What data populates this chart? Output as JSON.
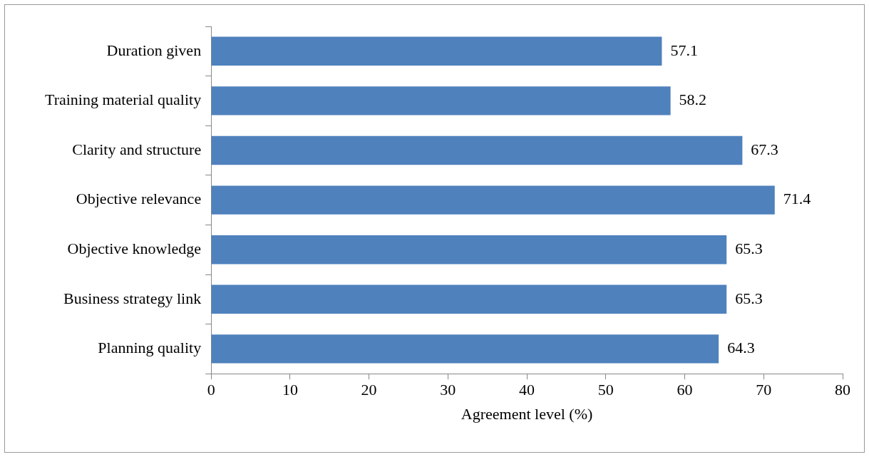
{
  "chart_data": {
    "type": "bar",
    "orientation": "horizontal",
    "xlabel": "Agreement level (%)",
    "categories": [
      "Duration given",
      "Training material quality",
      "Clarity and structure",
      "Objective relevance",
      "Objective knowledge",
      "Business strategy link",
      "Planning quality"
    ],
    "values": [
      57.1,
      58.2,
      67.3,
      71.4,
      65.3,
      65.3,
      64.3
    ],
    "color": "#4f81bd",
    "xlim": [
      0,
      80
    ],
    "xticks": [
      0,
      10,
      20,
      30,
      40,
      50,
      60,
      70,
      80
    ],
    "data_labels": true,
    "grid": false,
    "legend": false
  }
}
